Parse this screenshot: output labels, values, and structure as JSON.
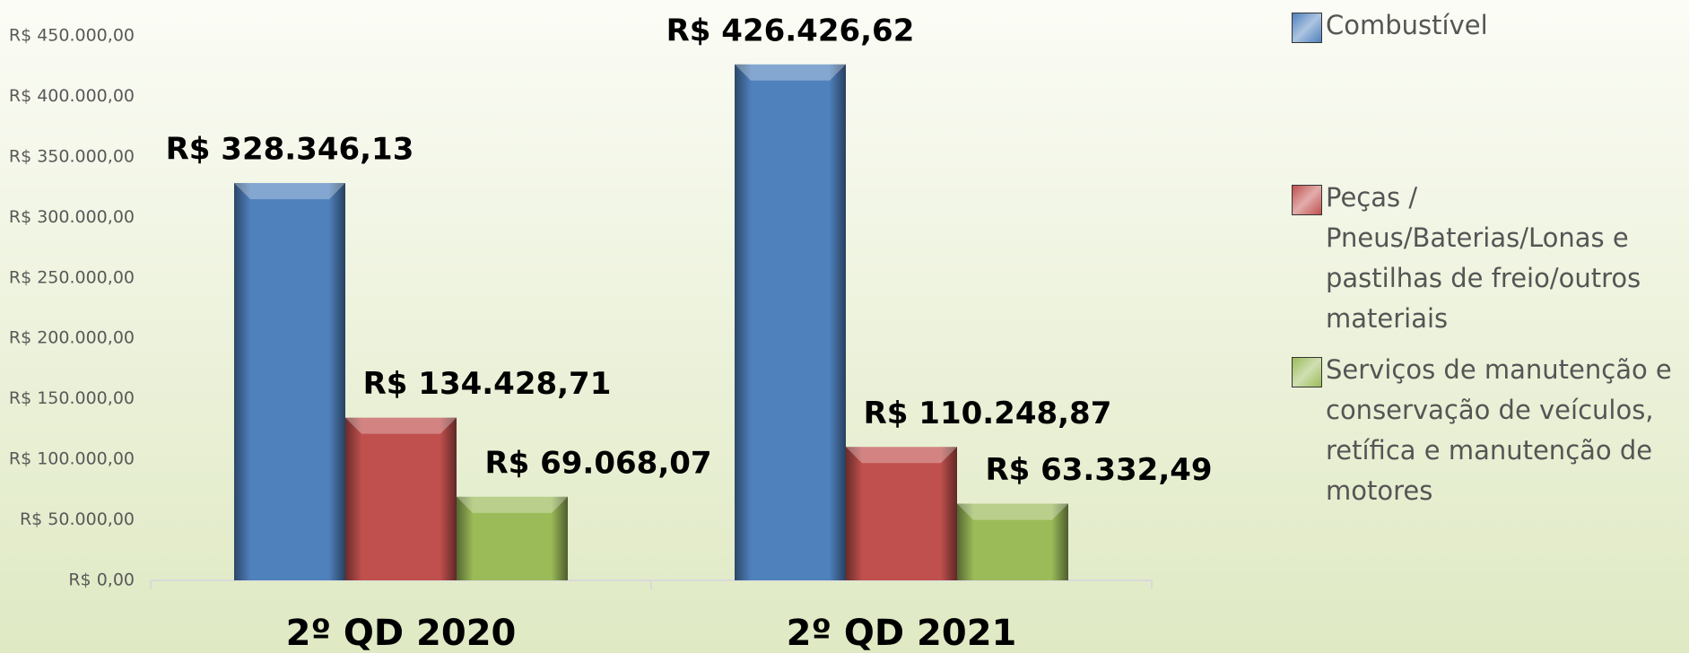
{
  "chart_data": {
    "type": "bar",
    "categories": [
      "2º QD 2020",
      "2º QD 2021"
    ],
    "series": [
      {
        "name": "Combustível",
        "color": "#4f81bd",
        "values": [
          328346.13,
          426426.62
        ],
        "value_labels": [
          "R$ 328.346,13",
          "R$ 426.426,62"
        ]
      },
      {
        "name": "Peças / Pneus/Baterias/Lonas e pastilhas de freio/outros materiais",
        "color": "#c0504d",
        "values": [
          134428.71,
          110248.87
        ],
        "value_labels": [
          "R$ 134.428,71",
          "R$ 110.248,87"
        ]
      },
      {
        "name": "Serviços de manutenção e conservação de veículos, retífica e manutenção de motores",
        "color": "#9bbb59",
        "values": [
          69068.07,
          63332.49
        ],
        "value_labels": [
          "R$ 69.068,07",
          "R$ 63.332,49"
        ]
      }
    ],
    "ylim": [
      0,
      450000
    ],
    "yticks": [
      {
        "value": 0,
        "label": "R$ 0,00"
      },
      {
        "value": 50000,
        "label": "R$ 50.000,00"
      },
      {
        "value": 100000,
        "label": "R$ 100.000,00"
      },
      {
        "value": 150000,
        "label": "R$ 150.000,00"
      },
      {
        "value": 200000,
        "label": "R$ 200.000,00"
      },
      {
        "value": 250000,
        "label": "R$ 250.000,00"
      },
      {
        "value": 300000,
        "label": "R$ 300.000,00"
      },
      {
        "value": 350000,
        "label": "R$ 350.000,00"
      },
      {
        "value": 400000,
        "label": "R$ 400.000,00"
      },
      {
        "value": 450000,
        "label": "R$ 450.000,00"
      }
    ],
    "grid": false,
    "legend": "right"
  }
}
